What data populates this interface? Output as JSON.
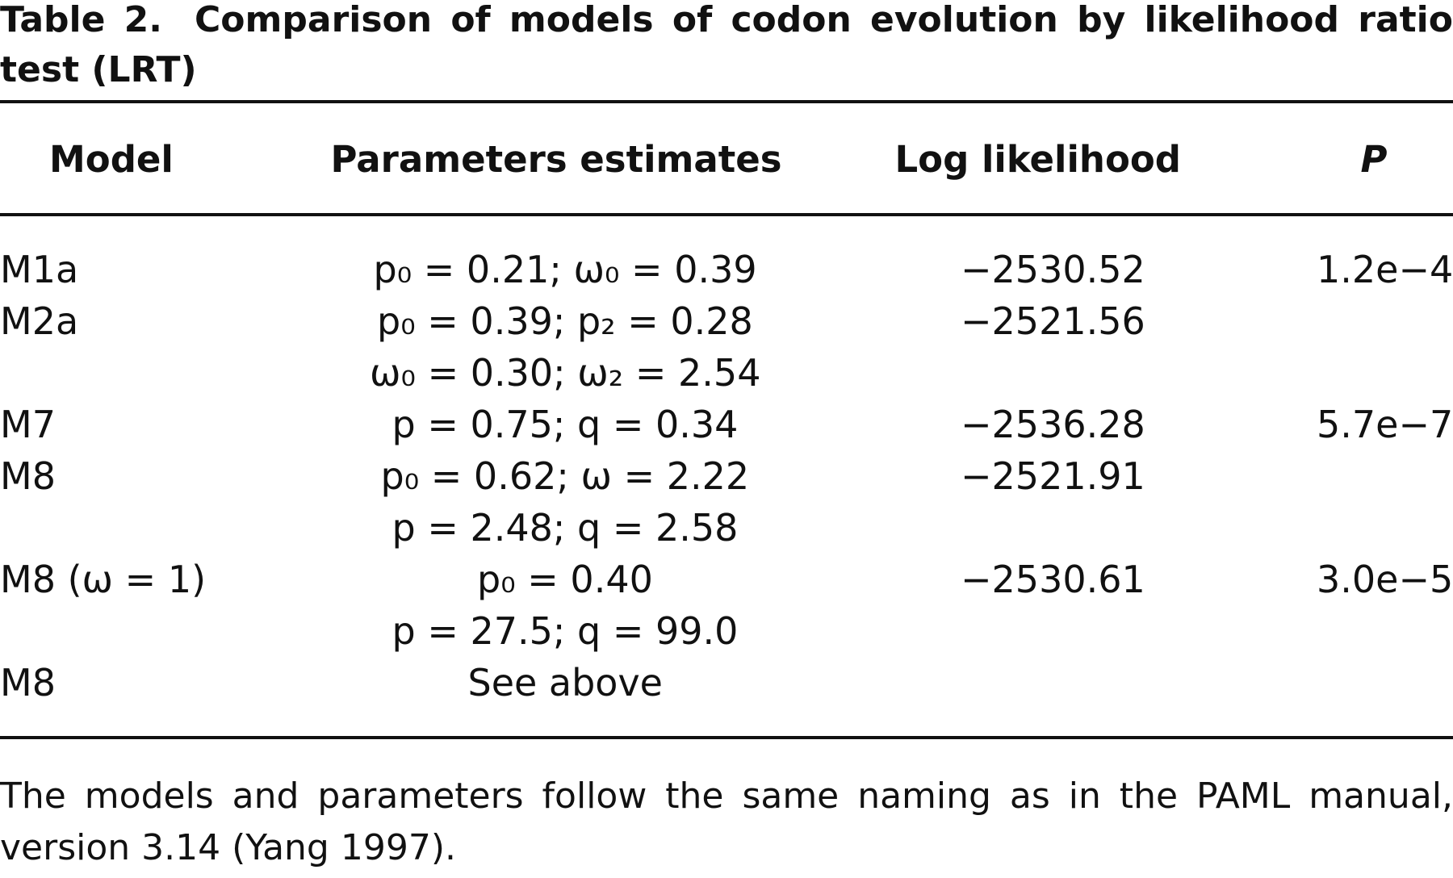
{
  "title": {
    "label": "Table 2.",
    "text": "Comparison of models of codon evolution by likelihood ratio test (LRT)"
  },
  "table": {
    "header": [
      "Model",
      "Parameters estimates",
      "Log likelihood",
      "P"
    ],
    "rows": [
      {
        "model": "M1a",
        "params": [
          "p₀ = 0.21; ω₀ = 0.39"
        ],
        "loglik": "−2530.52",
        "p": "1.2e−4"
      },
      {
        "model": "M2a",
        "params": [
          "p₀ = 0.39; p₂ = 0.28",
          "ω₀ = 0.30; ω₂ = 2.54"
        ],
        "loglik": "−2521.56"
      },
      {
        "model": "M7",
        "params": [
          "p = 0.75; q = 0.34"
        ],
        "loglik": "−2536.28",
        "p": "5.7e−7"
      },
      {
        "model": "M8",
        "params": [
          "p₀ = 0.62; ω = 2.22",
          "p = 2.48; q = 2.58"
        ],
        "loglik": "−2521.91"
      },
      {
        "model": "M8 (ω = 1)",
        "params": [
          "p₀ = 0.40",
          "p = 27.5; q = 99.0"
        ],
        "loglik": "−2530.61",
        "p": "3.0e−5"
      },
      {
        "model": "M8",
        "params": [
          "See above"
        ]
      }
    ]
  },
  "footnote": "The models and parameters follow the same naming as in the PAML manual, version 3.14 (Yang 1997)."
}
